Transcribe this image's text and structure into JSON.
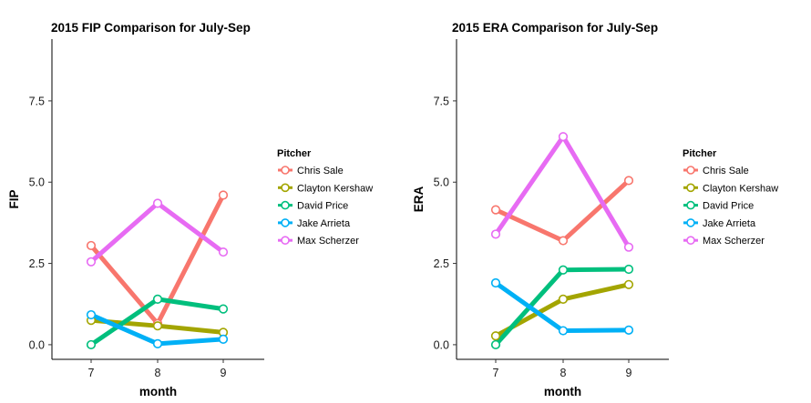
{
  "chart_data": [
    {
      "type": "line",
      "title": "2015 FIP Comparison for July-Sep",
      "xlabel": "month",
      "ylabel": "FIP",
      "categories": [
        "7",
        "8",
        "9"
      ],
      "yticks": [
        "0.0",
        "2.5",
        "5.0",
        "7.5"
      ],
      "ylim": [
        -0.45,
        9.4
      ],
      "grid": false,
      "legend": {
        "title": "Pitcher",
        "placement": "right"
      },
      "series": [
        {
          "name": "Chris Sale",
          "color": "#F8766D",
          "values": [
            3.05,
            0.65,
            4.6
          ]
        },
        {
          "name": "Clayton Kershaw",
          "color": "#A3A500",
          "values": [
            0.75,
            0.58,
            0.38
          ]
        },
        {
          "name": "David Price",
          "color": "#00BF7D",
          "values": [
            0.0,
            1.4,
            1.1
          ]
        },
        {
          "name": "Jake Arrieta",
          "color": "#00B0F6",
          "values": [
            0.92,
            0.03,
            0.17
          ]
        },
        {
          "name": "Max Scherzer",
          "color": "#E76BF3",
          "values": [
            2.55,
            4.35,
            2.85
          ]
        }
      ]
    },
    {
      "type": "line",
      "title": "2015 ERA Comparison for July-Sep",
      "xlabel": "month",
      "ylabel": "ERA",
      "categories": [
        "7",
        "8",
        "9"
      ],
      "yticks": [
        "0.0",
        "2.5",
        "5.0",
        "7.5"
      ],
      "ylim": [
        -0.45,
        9.4
      ],
      "grid": false,
      "legend": {
        "title": "Pitcher",
        "placement": "right"
      },
      "series": [
        {
          "name": "Chris Sale",
          "color": "#F8766D",
          "values": [
            4.15,
            3.2,
            5.05
          ]
        },
        {
          "name": "Clayton Kershaw",
          "color": "#A3A500",
          "values": [
            0.27,
            1.4,
            1.85
          ]
        },
        {
          "name": "David Price",
          "color": "#00BF7D",
          "values": [
            0.0,
            2.3,
            2.32
          ]
        },
        {
          "name": "Jake Arrieta",
          "color": "#00B0F6",
          "values": [
            1.9,
            0.43,
            0.45
          ]
        },
        {
          "name": "Max Scherzer",
          "color": "#E76BF3",
          "values": [
            3.4,
            6.4,
            3.0
          ]
        }
      ]
    }
  ]
}
